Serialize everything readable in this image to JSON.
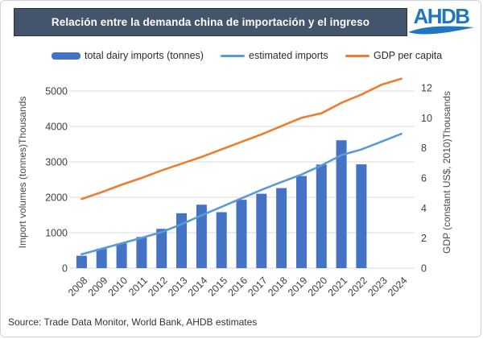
{
  "header": {
    "title": "Relación entre la demanda china de importación y el ingreso",
    "logo_text": "AHDB"
  },
  "legend": [
    {
      "label": "total dairy imports (tonnes)",
      "marker": "bar-swatch",
      "color": "#4472C4"
    },
    {
      "label": "estimated imports",
      "marker": "line-swatch",
      "color": "#5B9BD5"
    },
    {
      "label": "GDP per capita",
      "marker": "line-swatch",
      "color": "#ED7D31"
    }
  ],
  "chart_data": {
    "type": "bar",
    "subtype": "bar-line combo, dual axis",
    "categories": [
      "2008",
      "2009",
      "2010",
      "2011",
      "2012",
      "2013",
      "2014",
      "2015",
      "2016",
      "2017",
      "2018",
      "2019",
      "2020",
      "2021",
      "2022",
      "2023",
      "2024"
    ],
    "series": [
      {
        "name": "total dairy imports (tonnes)",
        "type": "bar",
        "axis": "left",
        "color": "#4472C4",
        "values": [
          350,
          550,
          700,
          880,
          1110,
          1550,
          1790,
          1580,
          1930,
          2100,
          2260,
          2600,
          2925,
          3610,
          2930,
          null,
          null
        ]
      },
      {
        "name": "estimated imports",
        "type": "line",
        "axis": "left",
        "color": "#5B9BD5",
        "values": [
          390,
          545,
          700,
          855,
          1015,
          1240,
          1490,
          1730,
          1970,
          2210,
          2430,
          2640,
          2900,
          3190,
          3350,
          3570,
          3790
        ]
      },
      {
        "name": "GDP per capita",
        "type": "line",
        "axis": "right",
        "color": "#ED7D31",
        "values": [
          4.6,
          5.05,
          5.55,
          6.0,
          6.5,
          6.95,
          7.4,
          7.9,
          8.4,
          8.9,
          9.45,
          10.0,
          10.3,
          11.0,
          11.55,
          12.2,
          12.6
        ]
      }
    ],
    "left_axis": {
      "title": "Import volumes (tonnes)Thousands",
      "ticks": [
        0,
        1000,
        2000,
        3000,
        4000,
        5000
      ],
      "range": [
        0,
        5000
      ]
    },
    "right_axis": {
      "title": "GDP (constant US$, 2010)Thousands",
      "ticks": [
        0,
        2,
        4,
        6,
        8,
        10,
        12
      ],
      "range": [
        0,
        12
      ]
    },
    "grid": true,
    "legend_position": "top",
    "x_label_rotation": 45
  },
  "source": "Source: Trade Data Monitor, World Bank, AHDB estimates",
  "colors": {
    "title_bar_bg": "#44546A",
    "title_text": "#FFFFFF",
    "logo_blue": "#2176C0",
    "bar": "#4472C4",
    "estimated_line": "#5B9BD5",
    "gdp_line": "#ED7D31",
    "gridline": "#D9D9D9",
    "tick_text": "#3F3F3F"
  }
}
